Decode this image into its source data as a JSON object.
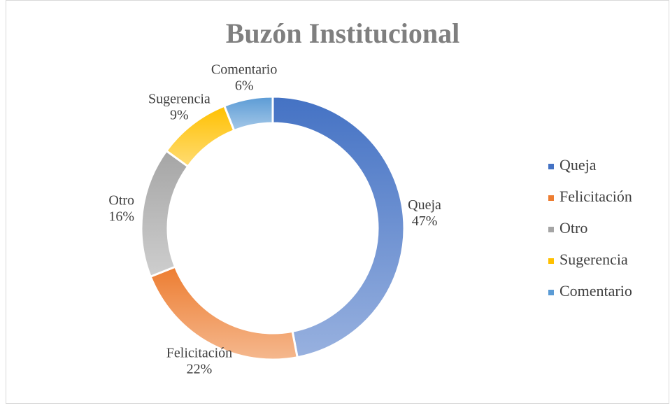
{
  "chart_data": {
    "type": "donut",
    "title": "Buzón Institucional",
    "categories": [
      "Queja",
      "Felicitación",
      "Otro",
      "Sugerencia",
      "Comentario"
    ],
    "values": [
      47,
      22,
      16,
      9,
      6
    ],
    "value_labels": [
      "47%",
      "22%",
      "16%",
      "9%",
      "6%"
    ],
    "colors": [
      "#4472c4",
      "#ed7d31",
      "#a5a5a5",
      "#ffc000",
      "#5b9bd5"
    ],
    "legend": "right"
  }
}
